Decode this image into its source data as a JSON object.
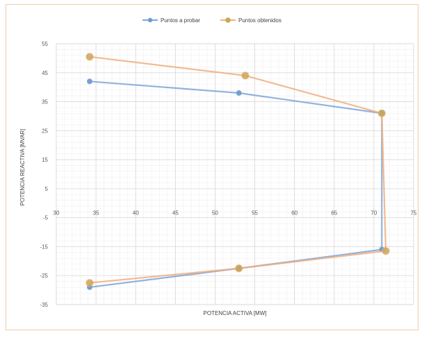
{
  "chart_data": {
    "type": "scatter",
    "title": "",
    "xlabel": "POTENCIA ACTIVA [MW]",
    "ylabel": "POTENCIA REACTIVA [MVAR]",
    "xlim": [
      30,
      75
    ],
    "ylim": [
      -35,
      55
    ],
    "x_ticks": [
      "30",
      "35",
      "40",
      "45",
      "50",
      "55",
      "60",
      "65",
      "70",
      "75"
    ],
    "y_ticks": [
      "55",
      "45",
      "35",
      "25",
      "15",
      "5",
      "-5",
      "-15",
      "-25",
      "-35"
    ],
    "grid": true,
    "legend_position": "top",
    "series": [
      {
        "name": "Puntos a probar",
        "color": "#7ea6d8",
        "marker_color": "#6f9bd1",
        "x": [
          34.2,
          53,
          71,
          71,
          53,
          34.2
        ],
        "y": [
          42,
          38,
          31,
          -16,
          -22.5,
          -29
        ]
      },
      {
        "name": "Puntos obtenidos",
        "color": "#f2ad7e",
        "marker_color": "#c9a857",
        "x": [
          34.2,
          53.8,
          71,
          71.5,
          53,
          34.2
        ],
        "y": [
          50.5,
          44,
          31,
          -16.5,
          -22.5,
          -27.5
        ]
      }
    ]
  }
}
